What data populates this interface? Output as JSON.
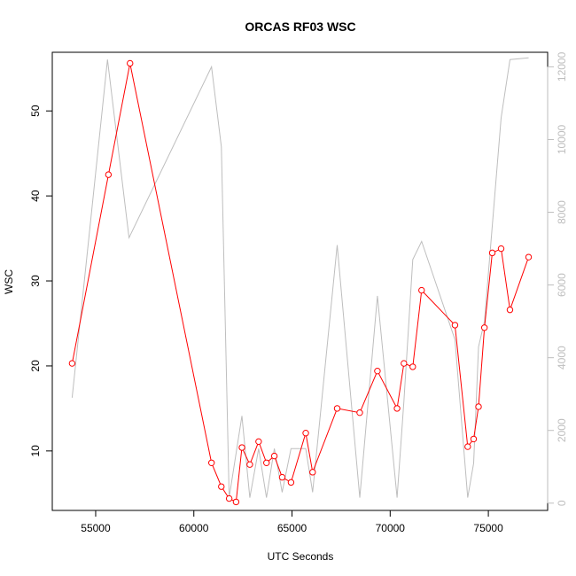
{
  "chart_data": {
    "type": "line",
    "title": "ORCAS RF03 WSC",
    "xlabel": "UTC Seconds",
    "ylabel": "WSC",
    "xlim": [
      52790,
      78020
    ],
    "ylim": [
      3.0,
      56.9
    ],
    "y2lim": [
      -200,
      12400
    ],
    "x_ticks": [
      55000,
      60000,
      65000,
      70000,
      75000
    ],
    "x_tick_labels": [
      "55000",
      "60000",
      "65000",
      "70000",
      "75000"
    ],
    "y_ticks": [
      10,
      20,
      30,
      40,
      50
    ],
    "y_tick_labels": [
      "10",
      "20",
      "30",
      "40",
      "50"
    ],
    "y2_ticks": [
      0,
      2000,
      4000,
      6000,
      8000,
      10000,
      12000
    ],
    "y2_tick_labels": [
      "0",
      "2000",
      "4000",
      "6000",
      "8000",
      "10000",
      "12000"
    ],
    "colors": {
      "primary": "#ff0000",
      "secondary": "#bebebe",
      "axis": "#000000",
      "secondary_axis": "#bebebe"
    },
    "series": [
      {
        "axis": "left",
        "style": "line+markers",
        "color": "#ff0000",
        "x": [
          53800,
          55650,
          56750,
          60900,
          61400,
          61800,
          62150,
          62450,
          62850,
          63300,
          63700,
          64100,
          64500,
          64950,
          65700,
          66050,
          67300,
          68450,
          69350,
          70350,
          70700,
          71150,
          71600,
          73300,
          73950,
          74250,
          74500,
          74800,
          75200,
          75650,
          76100,
          77050
        ],
        "y": [
          20.3,
          42.5,
          55.6,
          8.6,
          5.8,
          4.4,
          4.0,
          10.4,
          8.4,
          11.1,
          8.6,
          9.4,
          6.9,
          6.3,
          12.1,
          7.5,
          15.0,
          14.5,
          19.4,
          15.0,
          20.3,
          19.9,
          28.9,
          24.8,
          10.5,
          11.4,
          15.2,
          24.5,
          33.3,
          33.8,
          26.6,
          32.8
        ]
      },
      {
        "axis": "right",
        "style": "line",
        "color": "#bebebe",
        "x": [
          53800,
          55600,
          56700,
          60900,
          61400,
          61800,
          62450,
          62850,
          63300,
          63700,
          64100,
          64500,
          64950,
          65700,
          66050,
          67300,
          68450,
          69350,
          70350,
          70700,
          71150,
          71600,
          73300,
          73950,
          74250,
          74500,
          74800,
          75650,
          76100,
          77050
        ],
        "y": [
          2900,
          12200,
          7300,
          12000,
          9800,
          150,
          2400,
          150,
          1500,
          150,
          1500,
          300,
          1500,
          1500,
          300,
          7100,
          150,
          5700,
          150,
          2800,
          6700,
          7200,
          4500,
          150,
          1100,
          4300,
          5000,
          10600,
          12200,
          12250
        ]
      }
    ]
  }
}
